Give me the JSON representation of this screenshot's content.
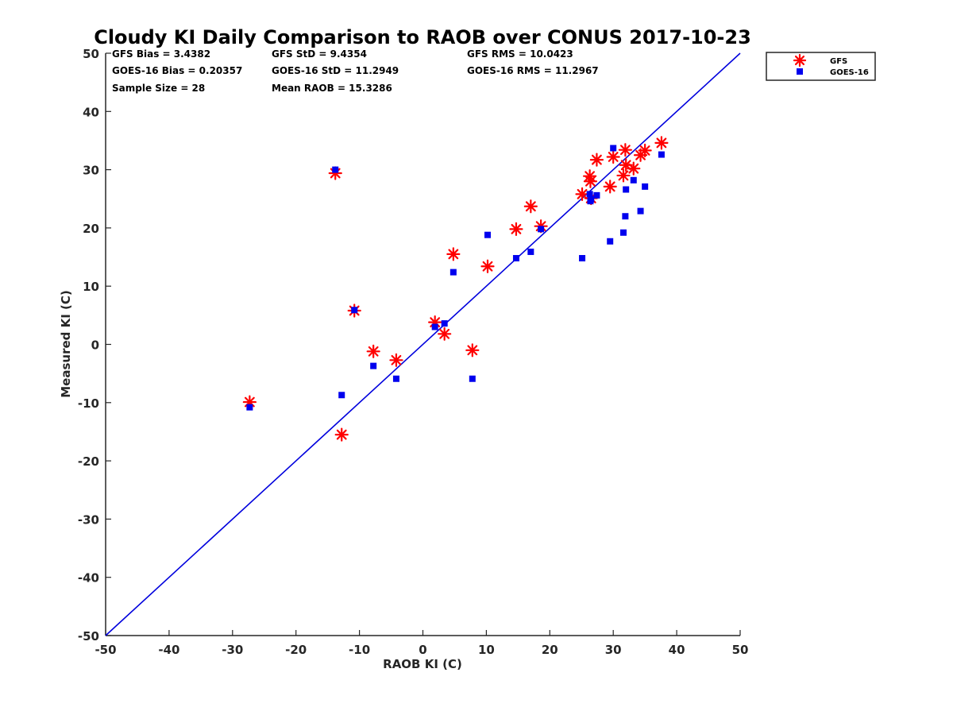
{
  "chart_data": {
    "type": "scatter",
    "title": "Cloudy KI Daily Comparison to RAOB over CONUS 2017-10-23",
    "xlabel": "RAOB KI (C)",
    "ylabel": "Measured KI (C)",
    "xlim": [
      -50,
      50
    ],
    "ylim": [
      -50,
      50
    ],
    "xticks": [
      "-50",
      "-40",
      "-30",
      "-20",
      "-10",
      "0",
      "10",
      "20",
      "30",
      "40",
      "50"
    ],
    "yticks": [
      "-50",
      "-40",
      "-30",
      "-20",
      "-10",
      "0",
      "10",
      "20",
      "30",
      "40",
      "50"
    ],
    "grid": false,
    "legend_position": "outside-top-right",
    "reference_line": {
      "from": [
        -50,
        -50
      ],
      "to": [
        50,
        50
      ],
      "color": "#0000dd"
    },
    "stats": [
      [
        "GFS Bias = 3.4382",
        "GFS StD = 9.4354",
        "GFS RMS = 10.0423"
      ],
      [
        "GOES-16 Bias = 0.20357",
        "GOES-16 StD = 11.2949",
        "GOES-16 RMS = 11.2967"
      ],
      [
        "Sample Size = 28",
        "Mean RAOB = 15.3286",
        ""
      ]
    ],
    "series": [
      {
        "name": "GFS",
        "marker": "asterisk",
        "color": "#ff0000",
        "x": [
          -27.3,
          -13.8,
          -12.8,
          -10.8,
          -7.8,
          -4.2,
          1.9,
          3.4,
          4.8,
          7.8,
          10.2,
          14.7,
          17.0,
          18.6,
          25.1,
          26.3,
          26.4,
          26.5,
          27.4,
          29.5,
          30.0,
          31.6,
          31.9,
          32.0,
          33.2,
          34.3,
          35.0,
          37.6
        ],
        "y": [
          -9.9,
          29.4,
          -15.5,
          5.8,
          -1.2,
          -2.7,
          3.8,
          1.8,
          15.5,
          -1.0,
          13.4,
          19.8,
          23.7,
          20.3,
          25.8,
          28.9,
          28.0,
          25.1,
          31.7,
          27.1,
          32.2,
          29.0,
          33.4,
          30.8,
          30.2,
          32.5,
          33.3,
          34.6
        ]
      },
      {
        "name": "GOES-16",
        "marker": "square",
        "color": "#0000ee",
        "x": [
          -27.3,
          -13.8,
          -12.8,
          -10.8,
          -7.8,
          -4.2,
          1.9,
          3.4,
          4.8,
          7.8,
          10.2,
          14.7,
          17.0,
          18.6,
          25.1,
          26.3,
          26.4,
          26.5,
          27.4,
          29.5,
          30.0,
          31.6,
          31.9,
          32.0,
          33.2,
          34.3,
          35.0,
          37.6
        ],
        "y": [
          -10.8,
          30.0,
          -8.7,
          5.9,
          -3.7,
          -5.9,
          3.0,
          3.6,
          12.4,
          -5.9,
          18.8,
          14.8,
          15.9,
          19.8,
          14.8,
          25.8,
          24.6,
          24.9,
          25.6,
          17.7,
          33.7,
          19.2,
          22.0,
          26.6,
          28.2,
          22.9,
          27.1,
          32.6
        ]
      }
    ]
  }
}
